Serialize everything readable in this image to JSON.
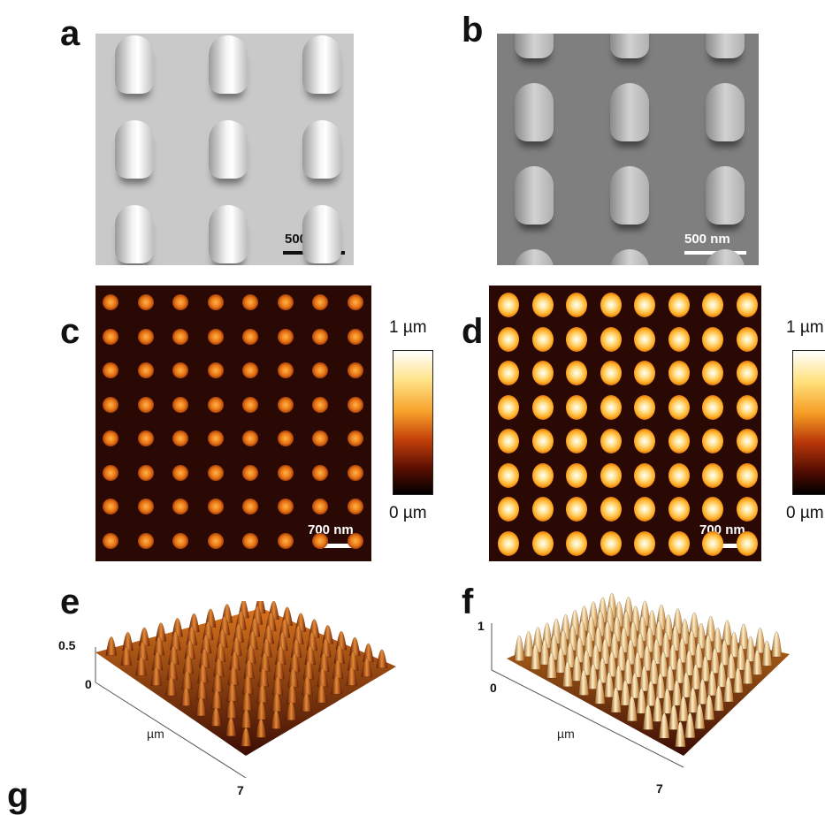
{
  "panel_labels": {
    "a": "a",
    "b": "b",
    "c": "c",
    "d": "d",
    "e": "e",
    "f": "f",
    "g": "g"
  },
  "scale_bars": {
    "a": "500 nm",
    "b": "500 nm",
    "c": "700 nm",
    "d": "700 nm"
  },
  "colorbars": {
    "c": {
      "max": "1 µm",
      "min": "0 µm"
    },
    "d": {
      "max": "1 µm",
      "min": "0 µm"
    }
  },
  "axes_3d": {
    "e": {
      "z_tick_top": "0.5",
      "z_tick_bottom": "0",
      "unit": "µm",
      "x_tick_end": "7"
    },
    "f": {
      "z_tick_top": "1",
      "z_tick_bottom": "0",
      "unit": "µm",
      "x_tick_end": "7"
    }
  },
  "colors": {
    "afm_background": "#2a0804",
    "afm_peak": "#ffffff",
    "afm_mid": "#f7a32b"
  }
}
